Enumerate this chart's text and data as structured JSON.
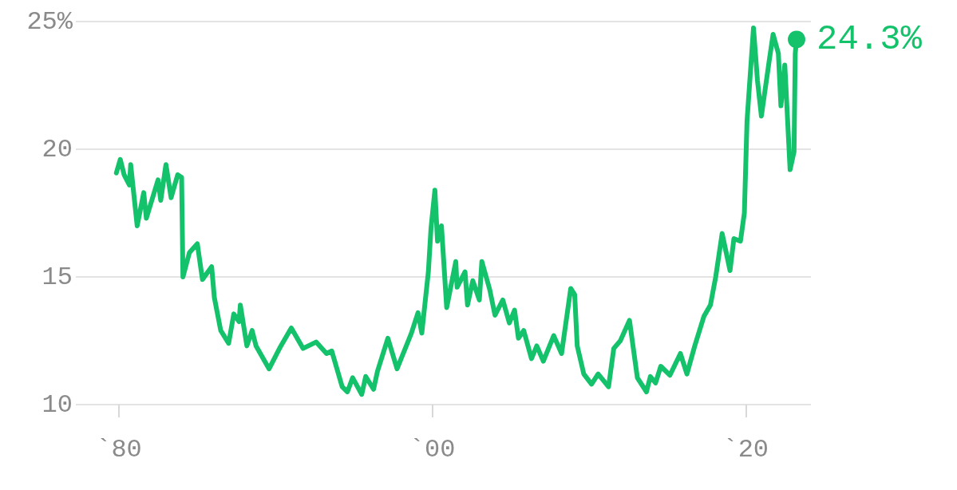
{
  "chart_data": {
    "type": "line",
    "x": [
      "1979-11",
      "1980-02",
      "1980-05",
      "1980-09",
      "1980-10",
      "1981-03",
      "1981-08",
      "1981-10",
      "1982-07",
      "1982-09",
      "1983-01",
      "1983-05",
      "1983-10",
      "1984-01",
      "1984-02",
      "1984-07",
      "1985-01",
      "1985-05",
      "1985-12",
      "1986-02",
      "1986-07",
      "1987-01",
      "1987-05",
      "1987-09",
      "1987-10",
      "1988-03",
      "1988-07",
      "1988-10",
      "1989-08",
      "1990-04",
      "1991-01",
      "1991-10",
      "1992-08",
      "1993-04",
      "1993-08",
      "1994-04",
      "1994-08",
      "1994-12",
      "1995-07",
      "1995-10",
      "1996-04",
      "1996-07",
      "1997-03",
      "1997-10",
      "1998-09",
      "1999-02",
      "1999-05",
      "1999-10",
      "1999-12",
      "2000-03",
      "2000-05",
      "2000-08",
      "2000-12",
      "2001-07",
      "2001-08",
      "2002-02",
      "2002-04",
      "2002-08",
      "2003-01",
      "2003-03",
      "2003-09",
      "2004-01",
      "2004-07",
      "2004-12",
      "2005-04",
      "2005-07",
      "2005-11",
      "2006-05",
      "2006-09",
      "2007-02",
      "2007-10",
      "2008-04",
      "2008-11",
      "2009-02",
      "2009-04",
      "2009-09",
      "2010-03",
      "2010-08",
      "2011-04",
      "2011-08",
      "2012-01",
      "2012-08",
      "2013-02",
      "2013-09",
      "2013-12",
      "2014-04",
      "2014-08",
      "2015-03",
      "2015-11",
      "2016-04",
      "2016-10",
      "2017-05",
      "2017-10",
      "2018-02",
      "2018-07",
      "2019-01",
      "2019-04",
      "2019-09",
      "2019-12",
      "2020-02",
      "2020-07",
      "2020-10",
      "2021-01",
      "2021-07",
      "2021-10",
      "2022-02",
      "2022-04",
      "2022-07",
      "2022-11",
      "2023-02",
      "2023-03",
      "2023-04"
    ],
    "series": [
      {
        "color": "#13c26b",
        "values": [
          19.07,
          19.6,
          19.0,
          18.6,
          19.4,
          17.0,
          18.3,
          17.3,
          18.8,
          18.0,
          19.4,
          18.1,
          19.0,
          18.9,
          15.0,
          15.95,
          16.3,
          14.9,
          15.4,
          14.2,
          12.9,
          12.4,
          13.55,
          13.25,
          13.9,
          12.3,
          12.9,
          12.3,
          11.4,
          12.2,
          13.0,
          12.2,
          12.45,
          12.0,
          12.1,
          10.7,
          10.5,
          11.05,
          10.4,
          11.1,
          10.6,
          11.3,
          12.6,
          11.4,
          12.8,
          13.6,
          12.8,
          15.2,
          16.9,
          18.4,
          16.4,
          17.0,
          13.8,
          15.6,
          14.6,
          15.2,
          13.9,
          14.85,
          14.1,
          15.6,
          14.5,
          13.5,
          14.1,
          13.2,
          13.7,
          12.6,
          12.9,
          11.8,
          12.3,
          11.7,
          12.7,
          12.0,
          14.55,
          14.3,
          12.3,
          11.2,
          10.8,
          11.2,
          10.7,
          12.2,
          12.5,
          13.3,
          11.05,
          10.5,
          11.1,
          10.85,
          11.5,
          11.15,
          12.0,
          11.2,
          12.3,
          13.45,
          13.9,
          15.0,
          16.7,
          15.25,
          16.5,
          16.4,
          17.5,
          21.1,
          24.75,
          22.7,
          21.3,
          23.45,
          24.5,
          23.75,
          21.7,
          23.3,
          19.2,
          19.9,
          23.75,
          24.3
        ]
      }
    ],
    "xlim": [
      "1977-04",
      "2024-03"
    ],
    "xticks": [
      {
        "value": "1980",
        "label": "`80"
      },
      {
        "value": "2000",
        "label": "`00"
      },
      {
        "value": "2020",
        "label": "`20"
      }
    ],
    "ylim": [
      10,
      25
    ],
    "yticks": [
      10,
      15,
      20,
      {
        "value": 25,
        "label": "25%"
      }
    ],
    "grid": "y",
    "annotations": [
      {
        "text": "24.3%",
        "x": "2023-04",
        "y": 24.3
      }
    ]
  }
}
